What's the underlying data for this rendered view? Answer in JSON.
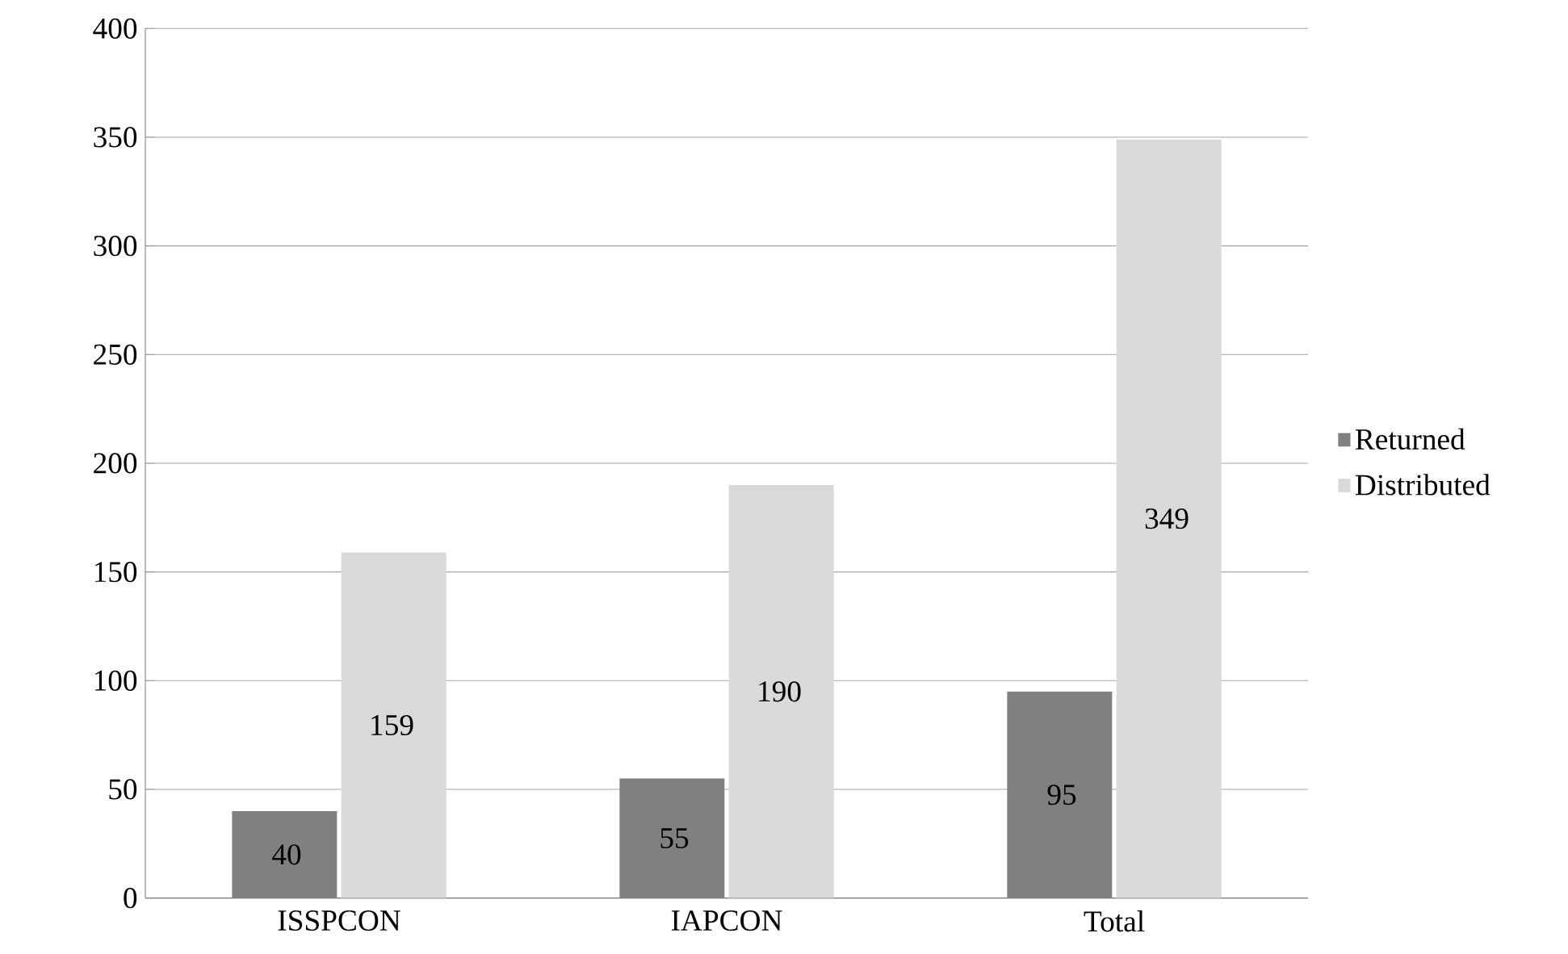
{
  "chart_data": {
    "type": "bar",
    "categories": [
      "ISSPCON",
      "IAPCON",
      "Total"
    ],
    "series": [
      {
        "name": "Returned",
        "color": "#808080",
        "values": [
          40,
          55,
          95
        ]
      },
      {
        "name": "Distributed",
        "color": "#d9d9d9",
        "values": [
          159,
          190,
          349
        ]
      }
    ],
    "ylim": [
      0,
      400
    ],
    "yticks": [
      0,
      50,
      100,
      150,
      200,
      250,
      300,
      350,
      400
    ],
    "grid": "y",
    "legend": "right",
    "data_labels": true
  }
}
